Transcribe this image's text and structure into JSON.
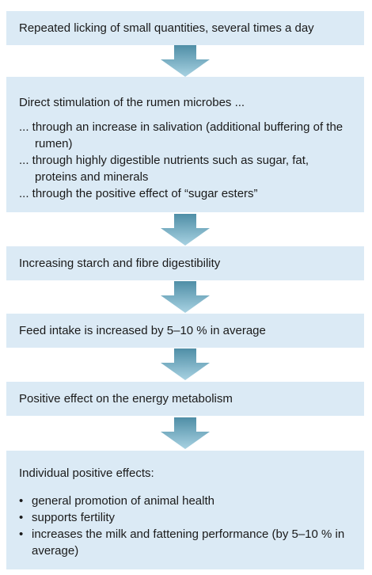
{
  "steps": [
    {
      "title": "Repeated licking of small quantities, several times a day"
    },
    {
      "title": "Direct stimulation of the rumen microbes ...",
      "items": [
        "... through an increase in salivation (additional buffering of the rumen)",
        "... through highly digestible nutrients such as sugar, fat, proteins and minerals",
        "... through the positive effect of “sugar esters”"
      ]
    },
    {
      "title": "Increasing starch and fibre digestibility"
    },
    {
      "title": "Feed intake is increased by 5–10 % in average"
    },
    {
      "title": "Positive effect on the energy metabolism"
    },
    {
      "title": "Individual positive effects:",
      "bullets": [
        "general promotion of animal health",
        "supports fertility",
        "increases the milk and fattening performance (by 5–10 % in average)"
      ]
    }
  ],
  "colors": {
    "box": "#dbeaf5",
    "arrow_top": "#4f8ea6",
    "arrow_bottom": "#9ccbdc"
  }
}
